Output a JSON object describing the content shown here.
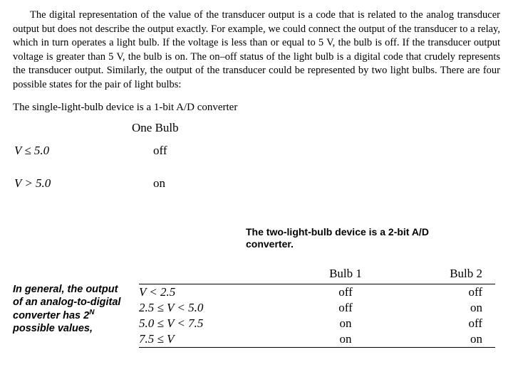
{
  "paragraph1": "The digital representation of the value of the transducer output is a code that is related to the analog transducer output but does not describe the output exactly. For example, we could connect the output of the transducer to a relay, which in turn operates a light bulb. If the voltage is less than or equal to 5 V, the bulb is off. If the transducer output voltage is greater than 5 V, the bulb is on. The on–off status of the light bulb is a digital code that crudely represents the transducer output. Similarly, the output of the transducer could be represented by two light bulbs. There are four possible states for the pair of light bulbs:",
  "subhead": "The single-light-bulb device is a 1-bit A/D converter",
  "one_bulb": {
    "header": "One Bulb",
    "row1_cond": "V ≤  5.0",
    "row1_val": "off",
    "row2_cond": "V >  5.0",
    "row2_val": "on"
  },
  "two_bit_caption": "The two-light-bulb device is a 2-bit A/D converter.",
  "general_note_lines": {
    "l1": "In general, the output of an analog-to-digital converter has",
    "l2_before": "2",
    "l2_sup": "N",
    "l2_after": " possible values,"
  },
  "two_bulb": {
    "h_cond": "",
    "h_b1": "Bulb 1",
    "h_b2": "Bulb 2",
    "rows": [
      {
        "cond": "V < 2.5",
        "b1": "off",
        "b2": "off"
      },
      {
        "cond": "2.5 ≤ V < 5.0",
        "b1": "off",
        "b2": "on"
      },
      {
        "cond": "5.0 ≤ V < 7.5",
        "b1": "on",
        "b2": "off"
      },
      {
        "cond": "7.5 ≤ V",
        "b1": "on",
        "b2": "on"
      }
    ]
  }
}
